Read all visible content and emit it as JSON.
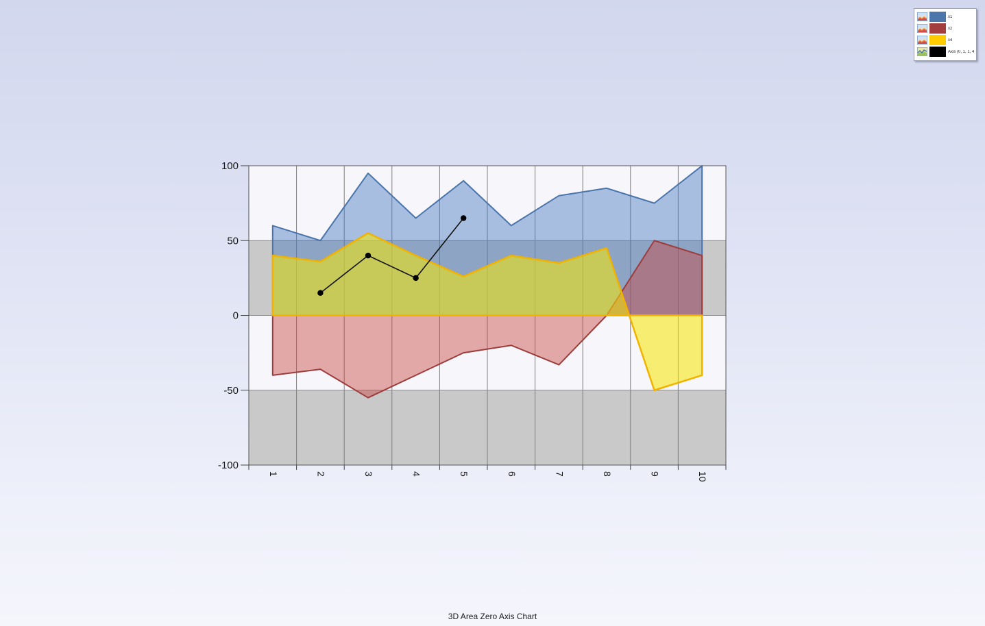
{
  "title": "3D Area Zero Axis Chart",
  "legend": {
    "items": [
      {
        "label": "x1",
        "swatch": "#4d76ab",
        "icon": "area-chart-icon"
      },
      {
        "label": "x2",
        "swatch": "#a33e3e",
        "icon": "area-chart-icon"
      },
      {
        "label": "x4",
        "swatch": "#ffcc00",
        "icon": "area-chart-icon"
      },
      {
        "label": "Axis (0, 1, 1, 4)",
        "swatch": "#000000",
        "icon": "line-chart-icon"
      }
    ]
  },
  "chart_data": {
    "type": "area",
    "subtype": "3d-zero-axis-area",
    "title": "3D Area Zero Axis Chart",
    "xlabel": "",
    "ylabel": "",
    "categories": [
      1,
      2,
      3,
      4,
      5,
      6,
      7,
      8,
      9,
      10
    ],
    "series": [
      {
        "name": "x1",
        "kind": "area",
        "line_color": "#4a74aa",
        "fill": "#4477c0",
        "fill_opacity": 0.45,
        "values": [
          60,
          50,
          95,
          65,
          90,
          60,
          80,
          85,
          75,
          100
        ]
      },
      {
        "name": "x2",
        "kind": "area",
        "line_color": "#9e3c3c",
        "fill": "#c84440",
        "fill_opacity": 0.45,
        "values": [
          -40,
          -36,
          -55,
          -40,
          -25,
          -20,
          -33,
          0,
          50,
          40
        ]
      },
      {
        "name": "x4",
        "kind": "area",
        "line_color": "#f2b200",
        "fill": "#f8e800",
        "fill_opacity": 0.55,
        "values": [
          40,
          36,
          55,
          40,
          26,
          40,
          35,
          45,
          -50,
          -40
        ]
      },
      {
        "name": "Axis (0, 1, 1, 4)",
        "kind": "line",
        "line_color": "#111111",
        "marker": "circle",
        "x": [
          2,
          3,
          4,
          5
        ],
        "values": [
          15,
          40,
          25,
          65
        ]
      }
    ],
    "ylim": [
      -100,
      100
    ],
    "yticks": [
      100,
      50,
      0,
      -50,
      -100
    ],
    "bands": {
      "interval": 50,
      "colors": [
        "#f7f7fb",
        "#c9c9c9"
      ]
    },
    "grid": {
      "vertical": true,
      "horizontal_at": [
        50,
        0,
        -50
      ]
    },
    "legend_position": "top-right"
  }
}
